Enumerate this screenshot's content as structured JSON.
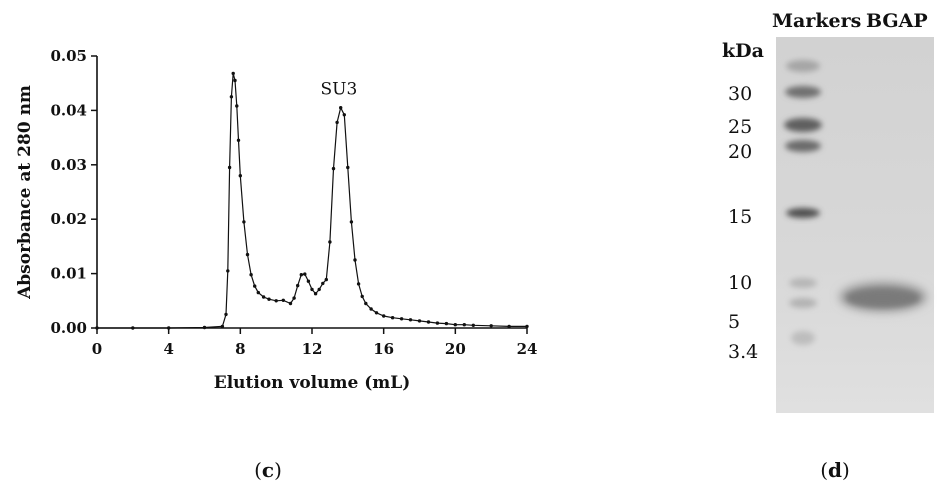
{
  "chart_data": [
    {
      "type": "line",
      "xlabel": "Elution volume (mL)",
      "ylabel": "Absorbance at 280 nm",
      "xlim": [
        0,
        24
      ],
      "ylim": [
        0,
        0.05
      ],
      "x_ticks": [
        "0",
        "4",
        "8",
        "12",
        "16",
        "20",
        "24"
      ],
      "y_ticks": [
        "0.00",
        "0.01",
        "0.02",
        "0.03",
        "0.04",
        "0.05"
      ],
      "grid": false,
      "annotations": [
        {
          "text": "SU3",
          "x": 13.5,
          "y": 0.0405
        }
      ],
      "panel_label": "c",
      "series": [
        {
          "x": [
            0,
            2,
            4,
            6,
            7.0,
            7.2,
            7.3,
            7.4,
            7.5,
            7.6,
            7.7,
            7.8,
            7.9,
            8.0,
            8.2,
            8.4,
            8.6,
            8.8,
            9.0,
            9.3,
            9.6,
            10.0,
            10.4,
            10.8,
            11.0,
            11.2,
            11.4,
            11.6,
            11.8,
            12.0,
            12.2,
            12.4,
            12.6,
            12.8,
            13.0,
            13.2,
            13.4,
            13.6,
            13.8,
            14.0,
            14.2,
            14.4,
            14.6,
            14.8,
            15.0,
            15.3,
            15.6,
            16.0,
            16.5,
            17.0,
            17.5,
            18.0,
            18.5,
            19.0,
            19.5,
            20.0,
            20.5,
            21.0,
            22.0,
            23.0,
            24.0
          ],
          "y": [
            0.0,
            0.0,
            0.0,
            0.0001,
            0.0003,
            0.0025,
            0.0105,
            0.0295,
            0.0425,
            0.0468,
            0.0455,
            0.0408,
            0.0345,
            0.028,
            0.0195,
            0.0135,
            0.0098,
            0.0077,
            0.0065,
            0.0057,
            0.0053,
            0.005,
            0.0051,
            0.0045,
            0.0055,
            0.0078,
            0.0098,
            0.0099,
            0.0086,
            0.0071,
            0.0063,
            0.0071,
            0.0082,
            0.0089,
            0.0158,
            0.0293,
            0.0378,
            0.0405,
            0.0392,
            0.0295,
            0.0195,
            0.0125,
            0.0081,
            0.0058,
            0.0045,
            0.0035,
            0.0028,
            0.0022,
            0.0019,
            0.0017,
            0.0015,
            0.0013,
            0.0011,
            0.0009,
            0.0008,
            0.0006,
            0.0006,
            0.0005,
            0.0004,
            0.0003,
            0.0003
          ]
        }
      ]
    },
    {
      "type": "gel",
      "panel_label": "d",
      "lane_labels": [
        "Markers",
        "BGAP"
      ],
      "unit_label": "kDa",
      "markers": [
        "30",
        "25",
        "20",
        "15",
        "10",
        "5",
        "3.4"
      ]
    }
  ]
}
